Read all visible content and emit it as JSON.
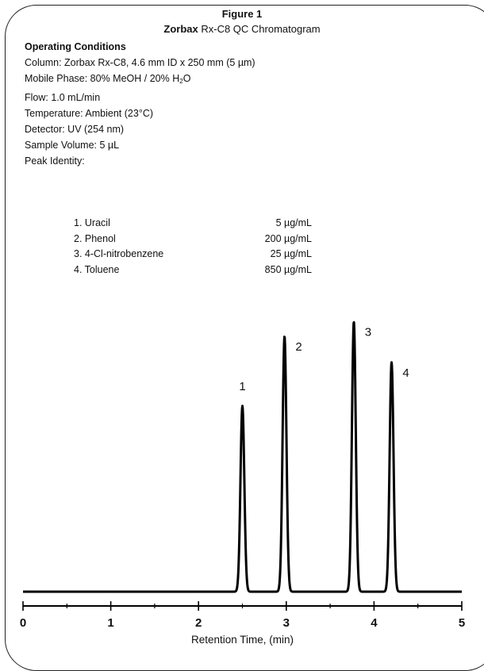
{
  "figure": {
    "label": "Figure 1",
    "title_bold": "Zorbax",
    "title_rest": " Rx-C8 QC Chromatogram"
  },
  "conditions": {
    "heading": "Operating Conditions",
    "column": "Column: Zorbax Rx-C8, 4.6 mm ID x 250 mm (5 µm)",
    "mobile_phase_prefix": "Mobile Phase: 80% MeOH / 20% H",
    "mobile_phase_sub": "2",
    "mobile_phase_suffix": "O",
    "flow": "Flow: 1.0 mL/min",
    "temperature": "Temperature: Ambient (23°C)",
    "detector": "Detector: UV (254 nm)",
    "sample_volume": "Sample Volume: 5 µL",
    "peak_identity_label": "Peak Identity:"
  },
  "peak_identity": [
    {
      "name": "1. Uracil",
      "conc": "5 µg/mL"
    },
    {
      "name": "2. Phenol",
      "conc": "200 µg/mL"
    },
    {
      "name": "3. 4-Cl-nitrobenzene",
      "conc": "25 µg/mL"
    },
    {
      "name": "4. Toluene",
      "conc": "850 µg/mL"
    }
  ],
  "chart_data": {
    "type": "line",
    "xlabel": "Retention Time, (min)",
    "ylabel": "",
    "xlim": [
      0,
      5
    ],
    "ylim": [
      0,
      1
    ],
    "x_ticks": [
      "0",
      "1",
      "2",
      "3",
      "4",
      "5"
    ],
    "grid": false,
    "baseline": 0,
    "series": [
      {
        "peaks": [
          {
            "label": "1",
            "x": 2.5,
            "height": 0.64
          },
          {
            "label": "2",
            "x": 2.98,
            "height": 0.88
          },
          {
            "label": "3",
            "x": 3.77,
            "height": 0.93
          },
          {
            "label": "4",
            "x": 4.2,
            "height": 0.79
          }
        ]
      }
    ]
  }
}
